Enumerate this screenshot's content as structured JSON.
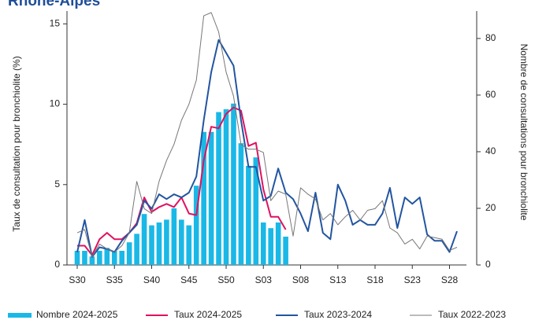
{
  "chart_data": {
    "type": "bar_line",
    "title": "Rhône-Alpes",
    "ylabel": "Taux de consultation pour bronchiolite (%)",
    "y2label": "Nombre de consultations pour bronchiolite",
    "categories": [
      "S30",
      null,
      null,
      null,
      null,
      "S35",
      null,
      null,
      null,
      null,
      "S40",
      null,
      null,
      null,
      null,
      "S45",
      null,
      null,
      null,
      null,
      "S50",
      null,
      null,
      null,
      null,
      "S03",
      null,
      null,
      null,
      null,
      "S08",
      null,
      null,
      null,
      null,
      "S13",
      null,
      null,
      null,
      null,
      "S18",
      null,
      null,
      null,
      null,
      "S23",
      null,
      null,
      null,
      null,
      "S28",
      null
    ],
    "ylim": [
      0,
      15.8
    ],
    "yticks": [
      0,
      5,
      10,
      15
    ],
    "y2lim": [
      0,
      89.7
    ],
    "y2ticks": [
      0,
      20,
      40,
      60,
      80
    ],
    "series": [
      {
        "name": "Nombre 2024-2025",
        "kind": "bar",
        "axis": "y2",
        "color": "#1ab8e6",
        "values": [
          5,
          5,
          3,
          5,
          6,
          5,
          5,
          8,
          11,
          18,
          14,
          15,
          16,
          20,
          16,
          14,
          28,
          47,
          47,
          54,
          55,
          57,
          43,
          35,
          38,
          15,
          13,
          15,
          10,
          null,
          null,
          null,
          null,
          null,
          null,
          null,
          null,
          null,
          null,
          null,
          null,
          null,
          null,
          null,
          null,
          null,
          null,
          null,
          null,
          null,
          null,
          null
        ]
      },
      {
        "name": "Taux 2024-2025",
        "kind": "line",
        "color": "#e0115f",
        "values": [
          1.2,
          1.2,
          0.6,
          1.6,
          2.0,
          1.6,
          1.6,
          2.0,
          2.6,
          4.2,
          3.3,
          3.6,
          3.8,
          3.6,
          4.2,
          3.2,
          3.1,
          6.5,
          8.6,
          8.5,
          9.4,
          9.8,
          9.6,
          7.4,
          7.6,
          4.7,
          3.0,
          3.0,
          2.2,
          null,
          null,
          null,
          null,
          null,
          null,
          null,
          null,
          null,
          null,
          null,
          null,
          null,
          null,
          null,
          null,
          null,
          null,
          null,
          null,
          null,
          null,
          null
        ]
      },
      {
        "name": "Taux 2023-2024",
        "kind": "line",
        "color": "#2255a0",
        "values": [
          0.8,
          2.8,
          0.5,
          1.1,
          1.0,
          0.8,
          1.5,
          2.0,
          2.5,
          4.0,
          3.5,
          4.4,
          4.1,
          4.4,
          4.2,
          4.5,
          5.5,
          9.0,
          12.0,
          14.0,
          13.2,
          12.4,
          9.0,
          6.1,
          6.1,
          4.0,
          4.3,
          6.0,
          4.5,
          4.1,
          3.2,
          2.1,
          4.5,
          2.0,
          1.6,
          5.0,
          4.0,
          2.5,
          2.8,
          2.5,
          2.5,
          3.2,
          4.8,
          2.3,
          4.2,
          3.8,
          4.2,
          1.9,
          1.5,
          1.5,
          0.8,
          2.1
        ]
      },
      {
        "name": "Taux 2022-2023",
        "kind": "line",
        "color": "#777777",
        "values": [
          2.0,
          2.2,
          0.5,
          1.3,
          1.0,
          0.8,
          1.2,
          2.0,
          5.2,
          3.5,
          3.2,
          5.2,
          6.5,
          7.5,
          9.0,
          10.0,
          11.5,
          15.5,
          15.7,
          14.5,
          12.0,
          10.5,
          7.5,
          7.2,
          7.2,
          7.0,
          4.0,
          4.6,
          4.4,
          1.8,
          4.8,
          4.4,
          4.1,
          2.8,
          3.2,
          2.5,
          3.0,
          3.4,
          2.8,
          3.4,
          3.5,
          4.0,
          2.3,
          2.0,
          1.3,
          1.6,
          1.0,
          1.8,
          1.7,
          1.6,
          0.9,
          1.1
        ]
      }
    ]
  }
}
